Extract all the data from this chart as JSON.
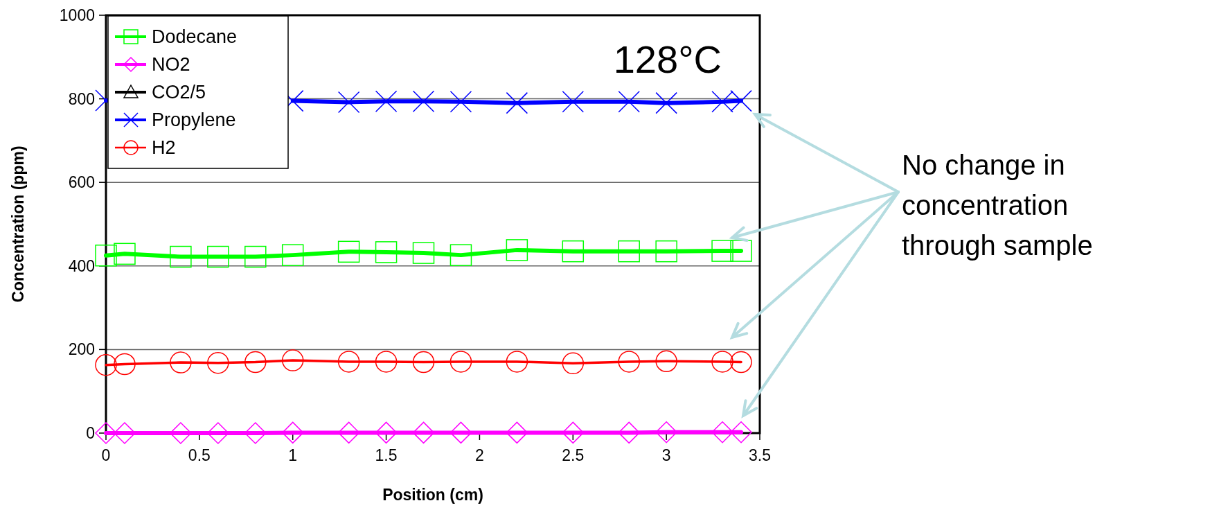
{
  "chart_data": {
    "type": "line",
    "xlabel": "Position (cm)",
    "ylabel": "Concentration (ppm)",
    "x": [
      0,
      0.1,
      0.4,
      0.6,
      0.8,
      1.0,
      1.3,
      1.5,
      1.7,
      1.9,
      2.2,
      2.5,
      2.8,
      3.0,
      3.3,
      3.4
    ],
    "xlim": [
      0,
      3.5
    ],
    "xticks": [
      0,
      0.5,
      1,
      1.5,
      2,
      2.5,
      3,
      3.5
    ],
    "ylim": [
      0,
      1000
    ],
    "yticks": [
      0,
      200,
      400,
      600,
      800,
      1000
    ],
    "grid": "y",
    "legend": "top left",
    "series": [
      {
        "name": "Dodecane",
        "color": "#00ff00",
        "marker": "square",
        "values": [
          425,
          429,
          422,
          422,
          422,
          426,
          434,
          433,
          431,
          426,
          438,
          435,
          435,
          435,
          436,
          436
        ]
      },
      {
        "name": "NO2",
        "color": "#ff00ff",
        "marker": "diamond",
        "values": [
          0,
          0,
          0,
          0,
          0,
          1,
          1,
          1,
          1,
          1,
          1,
          1,
          1,
          2,
          2,
          2
        ]
      },
      {
        "name": "CO2/5",
        "color": "#000000",
        "marker": "triangle",
        "values": [
          null,
          null,
          null,
          null,
          null,
          null,
          null,
          null,
          null,
          null,
          null,
          null,
          null,
          null,
          null,
          null
        ]
      },
      {
        "name": "Propylene",
        "color": "#0000ff",
        "marker": "cross",
        "values": [
          796,
          null,
          null,
          null,
          null,
          795,
          792,
          794,
          794,
          793,
          790,
          793,
          793,
          790,
          793,
          795
        ]
      },
      {
        "name": "H2",
        "color": "#ff0000",
        "marker": "circle",
        "values": [
          163,
          165,
          169,
          168,
          170,
          174,
          171,
          171,
          170,
          171,
          171,
          167,
          171,
          172,
          171,
          170
        ]
      }
    ],
    "annotations": [
      "128°C",
      "No change in concentration through sample"
    ]
  }
}
